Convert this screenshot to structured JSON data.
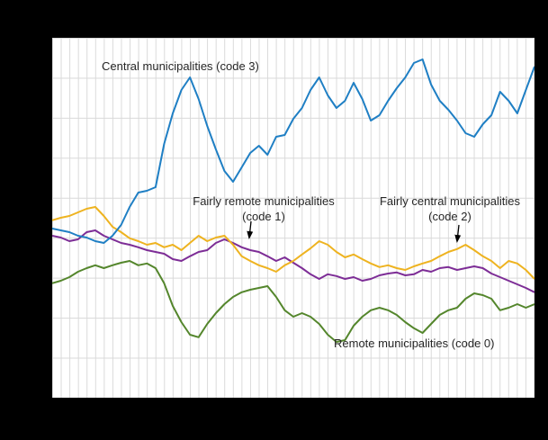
{
  "page": {
    "background": "#000000",
    "plot_background": "#ffffff",
    "grid_color": "#d9d9d9",
    "text_color": "#262626"
  },
  "chart_data": {
    "type": "line",
    "x_count": 57,
    "x_tick_labels_visible": false,
    "y_tick_labels_visible": false,
    "ylim": [
      0,
      100
    ],
    "grid": "on",
    "legend": "none (inline annotations with arrows)",
    "series": [
      {
        "name": "Central municipalities (code 3)",
        "code": 3,
        "color": "#1f7fc4",
        "values": [
          47,
          46.5,
          46,
          45,
          44.5,
          43.5,
          43,
          45,
          48,
          53,
          57,
          57.5,
          58.5,
          70.5,
          79,
          85.5,
          89,
          83,
          75.5,
          69,
          63,
          60,
          64,
          68,
          70,
          67.5,
          72.5,
          73,
          77.5,
          80.5,
          85.5,
          89,
          84,
          80.5,
          82.5,
          87.5,
          83,
          77,
          78.5,
          82.5,
          86,
          89,
          93,
          94,
          87,
          82.5,
          80,
          77,
          73.5,
          72.5,
          76,
          78.5,
          85,
          82.5,
          79,
          85.5,
          92
        ]
      },
      {
        "name": "Fairly central municipalities (code 2)",
        "code": 2,
        "color": "#eeb320",
        "values": [
          49.3,
          50,
          50.5,
          51.5,
          52.5,
          53,
          50.5,
          47.5,
          46,
          44.3,
          43.5,
          42.5,
          43,
          41.8,
          42.5,
          41,
          43,
          45,
          43.5,
          44.5,
          45,
          42.5,
          39.3,
          38,
          36.8,
          36,
          35,
          36.8,
          38,
          39.8,
          41.5,
          43.5,
          42.5,
          40.5,
          39,
          39.8,
          38.5,
          37.3,
          36.3,
          36.8,
          36,
          35.5,
          36.5,
          37.3,
          38,
          39.3,
          40.5,
          41.3,
          42.5,
          41,
          39.3,
          38,
          36,
          38,
          37.3,
          35.5,
          33
        ]
      },
      {
        "name": "Fairly remote municipalities (code 1)",
        "code": 1,
        "color": "#7d2d96",
        "values": [
          45,
          44.5,
          43.5,
          44,
          46,
          46.5,
          45,
          44,
          43,
          42.5,
          41.8,
          41,
          40.5,
          40,
          38.5,
          38,
          39.3,
          40.5,
          41,
          43,
          44,
          43,
          41.8,
          41,
          40.5,
          39.3,
          38,
          39,
          37.5,
          36,
          34.3,
          33,
          34.3,
          33.8,
          33,
          33.5,
          32.5,
          33,
          34,
          34.5,
          34.8,
          34,
          34.3,
          35.5,
          35,
          36,
          36.3,
          35.5,
          36,
          36.5,
          36,
          34.5,
          33.5,
          32.5,
          31.5,
          30.5,
          29.3
        ]
      },
      {
        "name": "Remote municipalities (code 0)",
        "code": 0,
        "color": "#54862c",
        "values": [
          31.8,
          32.5,
          33.5,
          35,
          36,
          36.8,
          36,
          36.8,
          37.5,
          38,
          36.8,
          37.3,
          36,
          31.8,
          25.5,
          21,
          17.5,
          16.8,
          20.5,
          23.5,
          26,
          28,
          29.3,
          30,
          30.5,
          31,
          28,
          24.3,
          22.5,
          23.5,
          22.5,
          20.5,
          17.5,
          15.5,
          16,
          20,
          22.5,
          24.3,
          25,
          24.3,
          23,
          21,
          19.3,
          18,
          20.5,
          23,
          24.3,
          25,
          27.5,
          29,
          28.5,
          27.5,
          24.3,
          25,
          26,
          25,
          26
        ]
      }
    ],
    "annotations": [
      {
        "text": "Central municipalities  (code 3)",
        "series_code": 3,
        "arrow": false
      },
      {
        "text": "Fairly remote municipalities\n(code 1)",
        "series_code": 1,
        "arrow": true
      },
      {
        "text": "Fairly central municipalities\n(code 2)",
        "series_code": 2,
        "arrow": true
      },
      {
        "text": "Remote municipalities  (code 0)",
        "series_code": 0,
        "arrow": false
      }
    ]
  }
}
